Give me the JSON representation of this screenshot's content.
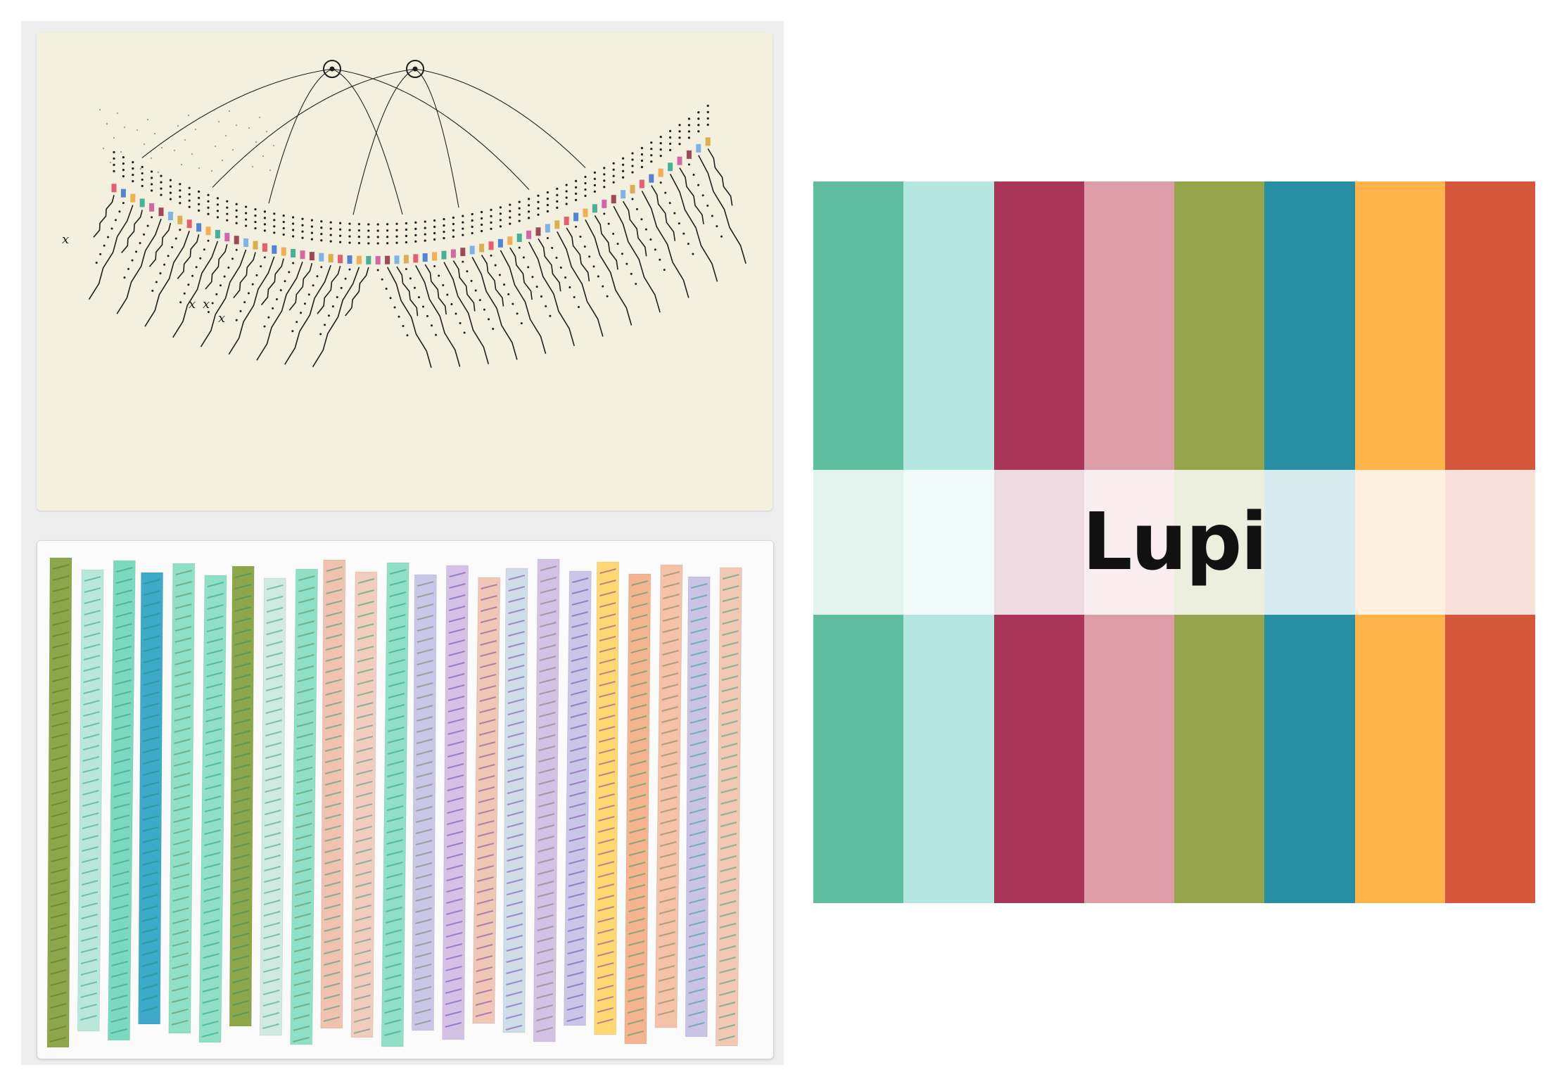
{
  "brand": {
    "title": "Lupi"
  },
  "poster": {
    "stripe_colors": [
      "#5fbea0",
      "#b3e7e0",
      "#a93658",
      "#dc9da9",
      "#96a54c",
      "#288fa2",
      "#feb34b",
      "#d5573b"
    ]
  },
  "sketch": {
    "palette": [
      "#e0455d",
      "#3a6fd0",
      "#f0a23c",
      "#2aa58a",
      "#c9509b",
      "#8b2d3e",
      "#6aa8e6",
      "#d6a23a"
    ],
    "mark_glyph": "x"
  },
  "strips": {
    "colors": [
      "#8ea64a",
      "#b9e8da",
      "#7cd9c0",
      "#3fa9c9",
      "#8fe0c6",
      "#8fe0c6",
      "#8ea64a",
      "#cfeadf",
      "#8fe0c6",
      "#f0c2b0",
      "#f2cdbd",
      "#8fe0c6",
      "#c9c6e8",
      "#d4c1e6",
      "#f0c6b5",
      "#cfdde8",
      "#d4c1e6",
      "#c9c6e8",
      "#ffd873",
      "#f3b48f",
      "#f3c2a8",
      "#cbc3e6",
      "#f0c8b4"
    ]
  }
}
